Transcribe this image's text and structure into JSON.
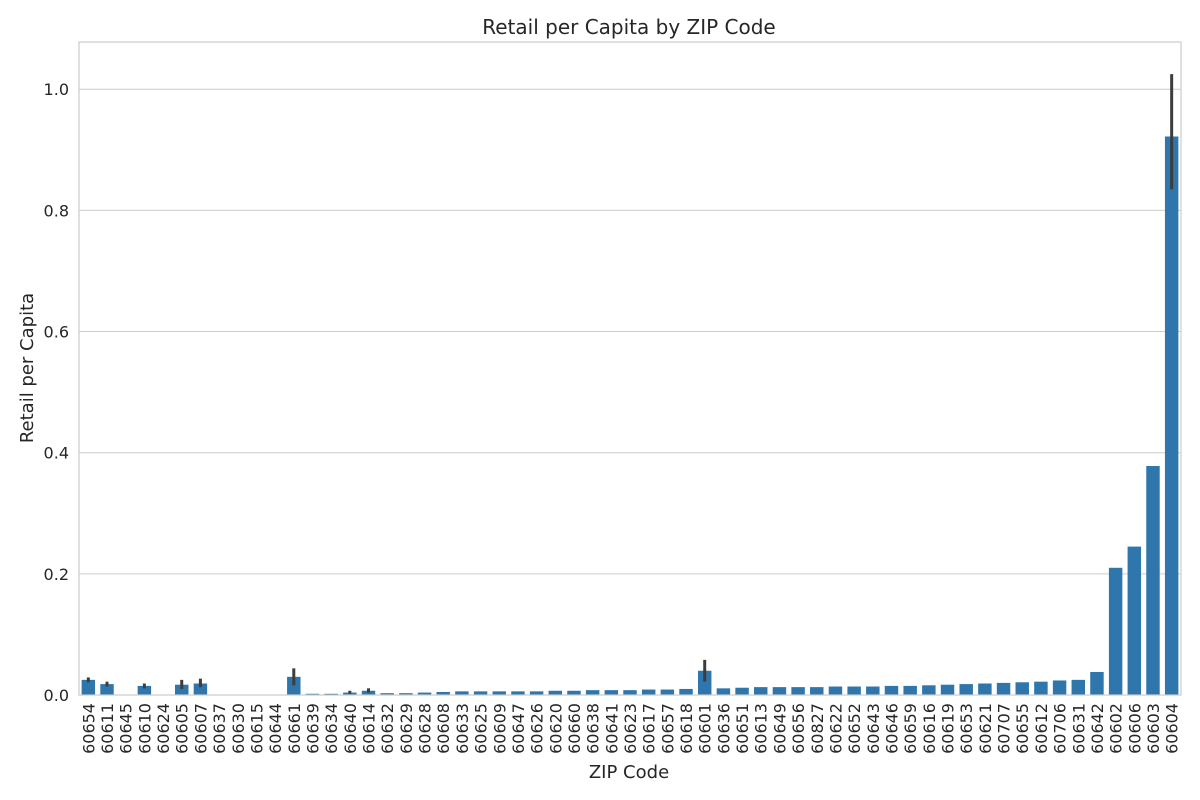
{
  "chart_data": {
    "type": "bar",
    "title": "Retail per Capita by ZIP Code",
    "xlabel": "ZIP Code",
    "ylabel": "Retail per Capita",
    "ylim": [
      0,
      1.078
    ],
    "y_ticks": [
      "0.0",
      "0.2",
      "0.4",
      "0.6",
      "0.8",
      "1.0"
    ],
    "grid": true,
    "legend": "none",
    "colors": {
      "bar": "#2e76ab",
      "error_bar": "#3d3d3d",
      "grid": "#cccccc"
    },
    "categories": [
      "60654",
      "60611",
      "60645",
      "60610",
      "60624",
      "60605",
      "60607",
      "60637",
      "60630",
      "60615",
      "60644",
      "60661",
      "60639",
      "60634",
      "60640",
      "60614",
      "60632",
      "60629",
      "60628",
      "60608",
      "60633",
      "60625",
      "60609",
      "60647",
      "60626",
      "60620",
      "60660",
      "60638",
      "60641",
      "60623",
      "60617",
      "60657",
      "60618",
      "60601",
      "60636",
      "60651",
      "60613",
      "60649",
      "60656",
      "60827",
      "60622",
      "60652",
      "60643",
      "60646",
      "60659",
      "60616",
      "60619",
      "60653",
      "60621",
      "60707",
      "60655",
      "60612",
      "60706",
      "60631",
      "60642",
      "60602",
      "60606",
      "60603",
      "60604"
    ],
    "values": [
      0.025,
      0.018,
      0.0,
      0.015,
      0.0,
      0.017,
      0.019,
      0.0,
      0.0,
      0.0,
      0.0,
      0.03,
      0.002,
      0.002,
      0.004,
      0.007,
      0.003,
      0.003,
      0.004,
      0.005,
      0.006,
      0.006,
      0.006,
      0.006,
      0.006,
      0.007,
      0.007,
      0.008,
      0.008,
      0.008,
      0.009,
      0.009,
      0.01,
      0.04,
      0.011,
      0.012,
      0.013,
      0.013,
      0.013,
      0.013,
      0.014,
      0.014,
      0.014,
      0.015,
      0.015,
      0.016,
      0.017,
      0.018,
      0.019,
      0.02,
      0.021,
      0.022,
      0.024,
      0.025,
      0.038,
      0.21,
      0.245,
      0.378,
      0.922
    ],
    "error_bars": [
      {
        "category": "60654",
        "low": 0.021,
        "high": 0.029
      },
      {
        "category": "60611",
        "low": 0.014,
        "high": 0.022
      },
      {
        "category": "60610",
        "low": 0.011,
        "high": 0.019
      },
      {
        "category": "60605",
        "low": 0.01,
        "high": 0.025
      },
      {
        "category": "60607",
        "low": 0.013,
        "high": 0.027
      },
      {
        "category": "60661",
        "low": 0.016,
        "high": 0.044
      },
      {
        "category": "60640",
        "low": 0.002,
        "high": 0.007
      },
      {
        "category": "60614",
        "low": 0.004,
        "high": 0.011
      },
      {
        "category": "60601",
        "low": 0.022,
        "high": 0.058
      },
      {
        "category": "60604",
        "low": 0.835,
        "high": 1.025
      }
    ]
  }
}
